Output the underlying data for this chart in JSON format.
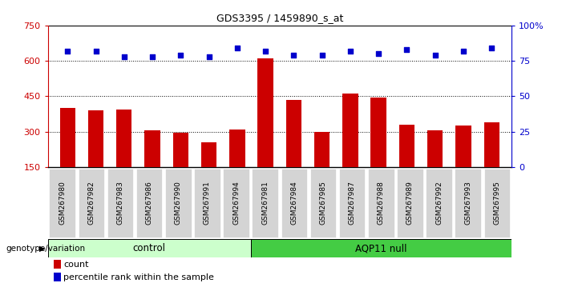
{
  "title": "GDS3395 / 1459890_s_at",
  "samples": [
    "GSM267980",
    "GSM267982",
    "GSM267983",
    "GSM267986",
    "GSM267990",
    "GSM267991",
    "GSM267994",
    "GSM267981",
    "GSM267984",
    "GSM267985",
    "GSM267987",
    "GSM267988",
    "GSM267989",
    "GSM267992",
    "GSM267993",
    "GSM267995"
  ],
  "counts": [
    400,
    390,
    395,
    305,
    295,
    255,
    310,
    610,
    435,
    300,
    460,
    445,
    330,
    305,
    325,
    340
  ],
  "percentile_ranks": [
    82,
    82,
    78,
    78,
    79,
    78,
    84,
    82,
    79,
    79,
    82,
    80,
    83,
    79,
    82,
    84
  ],
  "n_control": 7,
  "n_aqp11": 9,
  "control_color": "#ccffcc",
  "aqp11_color": "#44cc44",
  "bar_color": "#cc0000",
  "dot_color": "#0000cc",
  "ylim_left": [
    150,
    750
  ],
  "ylim_right": [
    0,
    100
  ],
  "yticks_left": [
    150,
    300,
    450,
    600,
    750
  ],
  "yticks_right": [
    0,
    25,
    50,
    75,
    100
  ],
  "grid_values": [
    300,
    450,
    600
  ],
  "tick_bg_color": "#d4d4d4",
  "bar_width": 0.55
}
